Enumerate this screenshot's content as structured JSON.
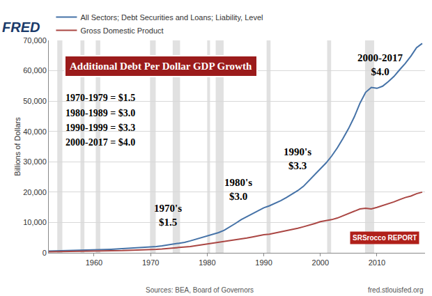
{
  "chart_data": {
    "type": "line",
    "title": "Additional Debt Per Dollar GDP Growth",
    "logo": "FRED",
    "source_logo": "SRSrocco REPORT",
    "y_label": "Billions of Dollars",
    "source": "Sources: BEA, Board of Governors",
    "url": "fred.stlouisfed.org",
    "legend": "top-left",
    "grid": true,
    "period_notes": [
      "1970-1979 = $1.5",
      "1980-1989 = $3.0",
      "1990-1999 = $3.3",
      "2000-2017 = $4.0"
    ],
    "chart_notes": [
      [
        "1970's",
        "$1.5"
      ],
      [
        "1980's",
        "$3.0"
      ],
      [
        "1990's",
        "$3.3"
      ],
      [
        "2000-2017",
        "$4.0"
      ]
    ],
    "recessions": [
      [
        1953.5,
        1954.4
      ],
      [
        1957.6,
        1958.3
      ],
      [
        1960.3,
        1961.1
      ],
      [
        1969.9,
        1970.9
      ],
      [
        1973.9,
        1975.2
      ],
      [
        1980.0,
        1980.5
      ],
      [
        1981.5,
        1982.9
      ],
      [
        1990.5,
        1991.2
      ],
      [
        2001.2,
        2001.9
      ],
      [
        2007.9,
        2009.5
      ]
    ],
    "x": [
      1952,
      1953,
      1954,
      1955,
      1956,
      1957,
      1958,
      1959,
      1960,
      1961,
      1962,
      1963,
      1964,
      1965,
      1966,
      1967,
      1968,
      1969,
      1970,
      1971,
      1972,
      1973,
      1974,
      1975,
      1976,
      1977,
      1978,
      1979,
      1980,
      1981,
      1982,
      1983,
      1984,
      1985,
      1986,
      1987,
      1988,
      1989,
      1990,
      1991,
      1992,
      1993,
      1994,
      1995,
      1996,
      1997,
      1998,
      1999,
      2000,
      2001,
      2002,
      2003,
      2004,
      2005,
      2006,
      2007,
      2008,
      2009,
      2010,
      2011,
      2012,
      2013,
      2014,
      2015,
      2016,
      2017,
      2018
    ],
    "series": [
      {
        "name": "All Sectors; Debt Securities and Loans; Liability, Level",
        "color": "#4572a7",
        "values": [
          580,
          620,
          655,
          715,
          755,
          795,
          845,
          910,
          960,
          1020,
          1095,
          1175,
          1260,
          1355,
          1445,
          1540,
          1665,
          1790,
          1900,
          2070,
          2290,
          2560,
          2830,
          3100,
          3450,
          3930,
          4470,
          5040,
          5520,
          6080,
          6670,
          7410,
          8460,
          9700,
          10940,
          11950,
          13000,
          13950,
          14850,
          15500,
          16300,
          17200,
          18200,
          19300,
          20500,
          21900,
          23800,
          25900,
          27700,
          29600,
          31900,
          34600,
          37700,
          41000,
          44800,
          49300,
          52900,
          54500,
          54200,
          54900,
          56400,
          58100,
          60300,
          62400,
          64800,
          67600,
          69000
        ]
      },
      {
        "name": "Gross Domestic Product",
        "color": "#aa4643",
        "values": [
          368,
          389,
          391,
          425,
          449,
          474,
          481,
          522,
          543,
          563,
          605,
          638,
          686,
          743,
          815,
          862,
          943,
          1019,
          1073,
          1165,
          1280,
          1425,
          1545,
          1684,
          1873,
          2082,
          2352,
          2627,
          2857,
          3207,
          3344,
          3634,
          4037,
          4339,
          4580,
          4855,
          5236,
          5642,
          5963,
          6158,
          6520,
          6859,
          7287,
          7640,
          8073,
          8577,
          9063,
          9631,
          10252,
          10582,
          10936,
          11458,
          12214,
          13037,
          13815,
          14452,
          14713,
          14449,
          14992,
          15543,
          16197,
          16785,
          17522,
          18219,
          18707,
          19485,
          20000
        ]
      }
    ],
    "xlim": [
      1952,
      2018.5
    ],
    "xticks": [
      1960,
      1970,
      1980,
      1990,
      2000,
      2010
    ],
    "ylim": [
      0,
      70000
    ],
    "yticks": [
      0,
      {
        "value": 10000,
        "label": "10,000"
      },
      {
        "value": 20000,
        "label": "20,000"
      },
      {
        "value": 30000,
        "label": "30,000"
      },
      {
        "value": 40000,
        "label": "40,000"
      },
      {
        "value": 50000,
        "label": "50,000"
      },
      {
        "value": 60000,
        "label": "60,000"
      },
      {
        "value": 70000,
        "label": "70,000"
      }
    ]
  }
}
